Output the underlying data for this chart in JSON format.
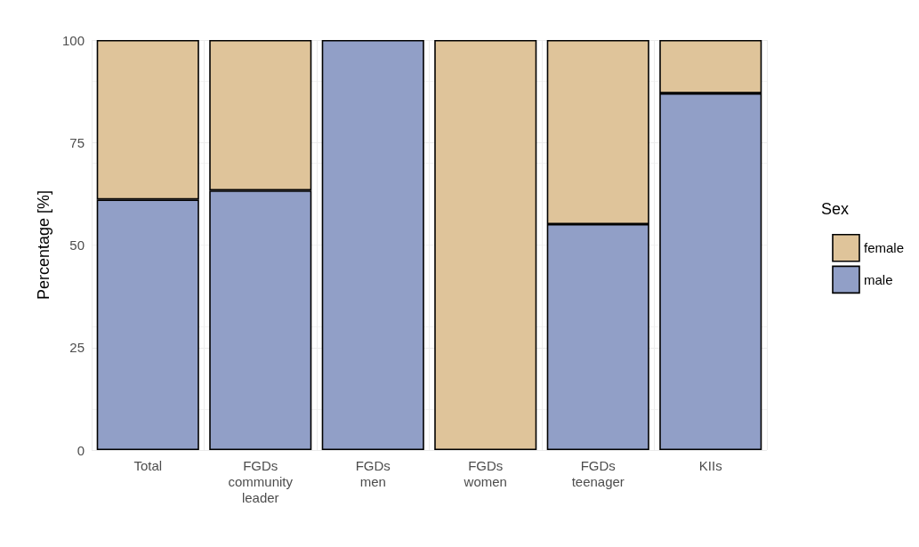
{
  "chart_data": {
    "type": "bar",
    "stacked": true,
    "categories": [
      "Total",
      "FGDs community leader",
      "FGDs men",
      "FGDs women",
      "FGDs teenager",
      "KIIs"
    ],
    "series": [
      {
        "name": "male",
        "color": "#919fc7",
        "values": [
          61.1,
          63.3,
          100,
          0,
          55.1,
          87.0
        ]
      },
      {
        "name": "female",
        "color": "#dfc49a",
        "values": [
          38.9,
          36.7,
          0,
          100,
          44.9,
          13.0
        ]
      }
    ],
    "ylabel": "Percentage [%]",
    "ylim": [
      0,
      100
    ],
    "yticks": [
      0,
      25,
      50,
      75,
      100
    ],
    "grid": true,
    "legend": "right",
    "legend_title": "Sex"
  }
}
